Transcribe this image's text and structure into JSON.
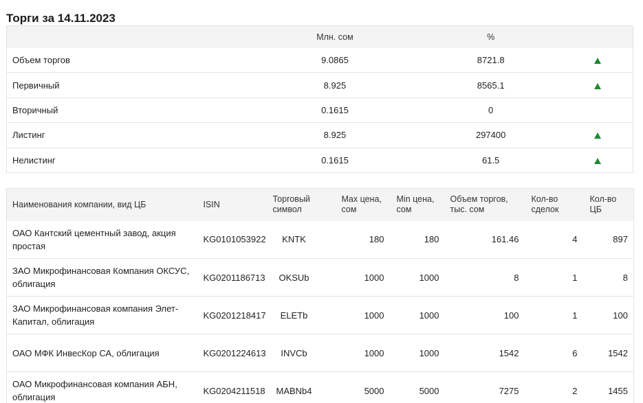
{
  "page": {
    "title": "Торги за 14.11.2023"
  },
  "summary": {
    "headers": {
      "label": "",
      "mln": "Млн. сом",
      "pct": "%"
    },
    "rows": [
      {
        "label": "Объем торгов",
        "mln": "9.0865",
        "pct": "8721.8",
        "trend": "up"
      },
      {
        "label": "Первичный",
        "mln": "8.925",
        "pct": "8565.1",
        "trend": "up"
      },
      {
        "label": "Вторичный",
        "mln": "0.1615",
        "pct": "0",
        "trend": ""
      },
      {
        "label": "Листинг",
        "mln": "8.925",
        "pct": "297400",
        "trend": "up"
      },
      {
        "label": "Нелистинг",
        "mln": "0.1615",
        "pct": "61.5",
        "trend": "up"
      }
    ],
    "colors": {
      "up": "#1f8a2e"
    }
  },
  "trades": {
    "headers": {
      "name": "Наименования компании, вид ЦБ",
      "isin": "ISIN",
      "symbol": "Торговый символ",
      "max": "Max цена, сом",
      "min": "Min цена, сом",
      "volume": "Объем торгов, тыс. сом",
      "deals": "Кол-во сделок",
      "qty": "Кол-во ЦБ"
    },
    "rows": [
      {
        "name": "ОАО Кантский цементный завод, акция простая",
        "isin": "KG0101053922",
        "symbol": "KNTK",
        "max": "180",
        "min": "180",
        "volume": "161.46",
        "deals": "4",
        "qty": "897"
      },
      {
        "name": "ЗАО Микрофинансовая Компания ОКСУС, облигация",
        "isin": "KG0201186713",
        "symbol": "OKSUb",
        "max": "1000",
        "min": "1000",
        "volume": "8",
        "deals": "1",
        "qty": "8"
      },
      {
        "name": "ЗАО Микрофинансовая компания Элет-Капитал, облигация",
        "isin": "KG0201218417",
        "symbol": "ELETb",
        "max": "1000",
        "min": "1000",
        "volume": "100",
        "deals": "1",
        "qty": "100"
      },
      {
        "name": "ОАО МФК ИнвесКор СА, облигация",
        "isin": "KG0201224613",
        "symbol": "INVCb",
        "max": "1000",
        "min": "1000",
        "volume": "1542",
        "deals": "6",
        "qty": "1542"
      },
      {
        "name": "ОАО Микрофинансовая компания АБН, облигация",
        "isin": "KG0204211518",
        "symbol": "MABNb4",
        "max": "5000",
        "min": "5000",
        "volume": "7275",
        "deals": "2",
        "qty": "1455"
      }
    ]
  }
}
